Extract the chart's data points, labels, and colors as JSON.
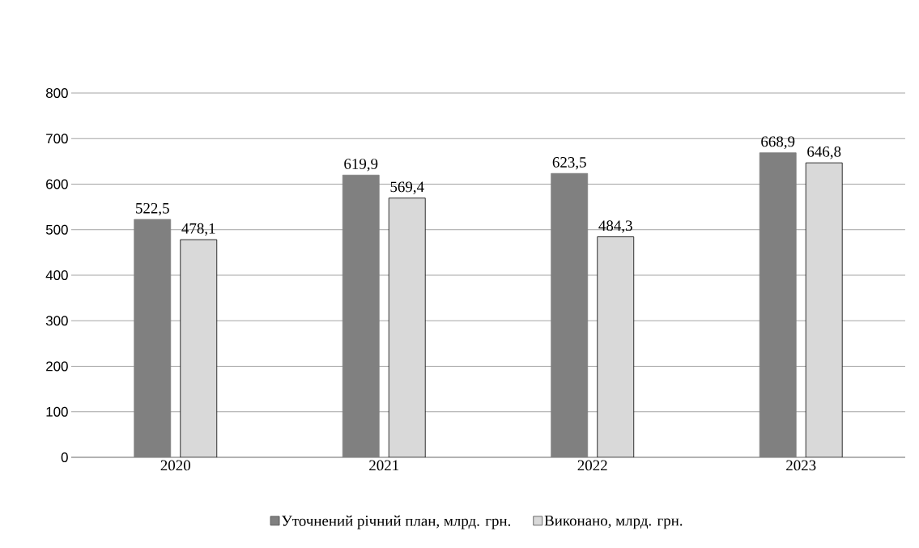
{
  "chart_data": {
    "type": "bar",
    "categories": [
      "2020",
      "2021",
      "2022",
      "2023"
    ],
    "series": [
      {
        "name": "Уточнений річний план, млрд. грн.",
        "color": "#808080",
        "values": [
          522.5,
          619.9,
          623.5,
          668.9
        ],
        "value_labels": [
          "522,5",
          "619,9",
          "623,5",
          "668,9"
        ]
      },
      {
        "name": "Виконано, млрд. грн.",
        "color": "#d9d9d9",
        "values": [
          478.1,
          569.4,
          484.3,
          646.8
        ],
        "value_labels": [
          "478,1",
          "569,4",
          "484,3",
          "646,8"
        ]
      }
    ],
    "ylim": [
      0,
      800
    ],
    "yticks": [
      0,
      100,
      200,
      300,
      400,
      500,
      600,
      700,
      800
    ],
    "grid": "y",
    "legend": "bottom"
  }
}
